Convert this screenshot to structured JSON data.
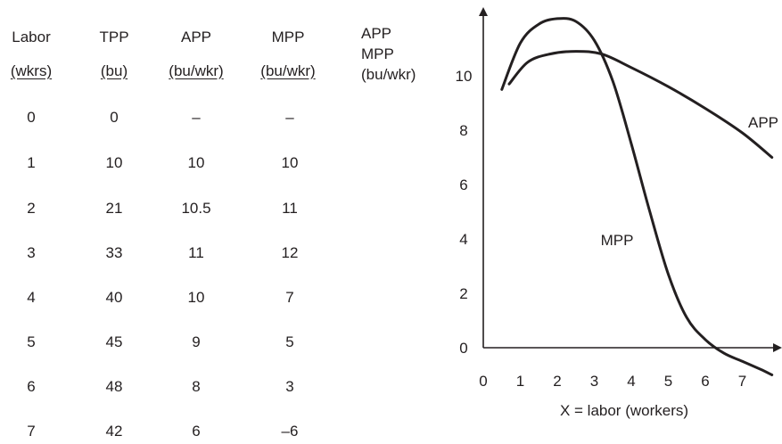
{
  "table": {
    "headers": [
      {
        "top": "Labor",
        "unit": "(wkrs)"
      },
      {
        "top": "TPP",
        "unit": "(bu)"
      },
      {
        "top": "APP",
        "unit": "(bu/wkr)"
      },
      {
        "top": "MPP",
        "unit": "(bu/wkr)"
      }
    ],
    "rows": [
      [
        "0",
        "0",
        "–",
        "–"
      ],
      [
        "1",
        "10",
        "10",
        "10"
      ],
      [
        "2",
        "21",
        "10.5",
        "11"
      ],
      [
        "3",
        "33",
        "11",
        "12"
      ],
      [
        "4",
        "40",
        "10",
        "7"
      ],
      [
        "5",
        "45",
        "9",
        "5"
      ],
      [
        "6",
        "48",
        "8",
        "3"
      ],
      [
        "7",
        "42",
        "6",
        "–6"
      ]
    ]
  },
  "chart_data": {
    "type": "line",
    "ylabel": [
      "APP",
      "MPP",
      "(bu/wkr)"
    ],
    "xlabel": "X = labor (workers)",
    "xlim": [
      0,
      8
    ],
    "ylim": [
      0,
      12
    ],
    "xticks": [
      "0",
      "1",
      "2",
      "3",
      "4",
      "5",
      "6",
      "7"
    ],
    "yticks": [
      "0",
      "2",
      "4",
      "6",
      "8",
      "10"
    ],
    "grid": false,
    "series": [
      {
        "name": "APP",
        "x": [
          0.7,
          1.2,
          1.8,
          2.5,
          3.2,
          4,
          5,
          6,
          7,
          7.8
        ],
        "y": [
          9.7,
          10.5,
          10.8,
          10.9,
          10.8,
          10.3,
          9.6,
          8.8,
          7.9,
          7.0
        ]
      },
      {
        "name": "MPP",
        "x": [
          0.5,
          1,
          1.5,
          2,
          2.5,
          3,
          3.5,
          4,
          4.5,
          5,
          5.5,
          6,
          6.5,
          7,
          7.5,
          7.8
        ],
        "y": [
          9.5,
          11.2,
          11.9,
          12.1,
          12.0,
          11.3,
          9.8,
          7.5,
          5.0,
          2.7,
          1.1,
          0.3,
          -0.2,
          -0.5,
          -0.8,
          -1.0
        ]
      }
    ]
  }
}
